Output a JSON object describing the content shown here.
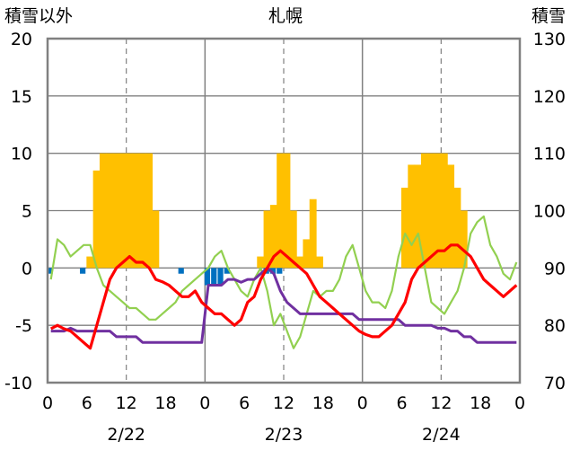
{
  "chart_data": {
    "type": "bar",
    "title": "札幌",
    "left_axis_label": "積雪以外",
    "right_axis_label": "積雪",
    "left_ylim": [
      -10,
      20
    ],
    "left_ticks": [
      "-10",
      "-5",
      "0",
      "5",
      "10",
      "15",
      "20"
    ],
    "right_ylim": [
      70,
      130
    ],
    "right_ticks": [
      "70",
      "80",
      "90",
      "100",
      "110",
      "120",
      "130"
    ],
    "x_range_hours": [
      0,
      72
    ],
    "x_tick_labels": [
      "0",
      "6",
      "12",
      "18",
      "0",
      "6",
      "12",
      "18",
      "0",
      "6",
      "12",
      "18",
      "0"
    ],
    "date_labels": [
      "2/22",
      "2/23",
      "2/24"
    ],
    "grid": true,
    "colors": {
      "snowfall": "#FFC000",
      "precip": "#0070C0",
      "temperature": "#FF0000",
      "humidity_like": "#92D050",
      "snow_depth": "#7030A0",
      "frame": "#808080"
    },
    "series": [
      {
        "kind": "bar",
        "color_key": "snowfall",
        "x": [
          6,
          7,
          8,
          9,
          10,
          11,
          12,
          13,
          14,
          15,
          16,
          32,
          33,
          34,
          35,
          36,
          37,
          38,
          39,
          40,
          41,
          54,
          55,
          56,
          57,
          58,
          59,
          60,
          61,
          62,
          63
        ],
        "values": [
          1,
          8.5,
          10,
          10,
          10,
          10,
          10,
          10,
          10,
          10,
          5,
          1,
          5,
          5.5,
          10,
          10,
          5,
          1,
          2.5,
          6,
          1,
          7,
          9,
          9,
          10,
          10,
          10,
          10,
          9,
          7,
          5
        ]
      },
      {
        "kind": "bar",
        "color_key": "precip",
        "x": [
          0,
          5,
          20,
          24,
          25,
          26,
          27,
          33,
          34,
          35
        ],
        "values": [
          -0.5,
          -0.5,
          -0.5,
          -1.5,
          -1.5,
          -1.5,
          -0.5,
          -0.5,
          -0.5,
          -0.5
        ]
      },
      {
        "kind": "line",
        "color_key": "temperature",
        "x": [
          0,
          1,
          2,
          3,
          4,
          5,
          6,
          7,
          8,
          9,
          10,
          11,
          12,
          13,
          14,
          15,
          16,
          17,
          18,
          19,
          20,
          21,
          22,
          23,
          24,
          25,
          26,
          27,
          28,
          29,
          30,
          31,
          32,
          33,
          34,
          35,
          36,
          37,
          38,
          39,
          40,
          41,
          42,
          43,
          44,
          45,
          46,
          47,
          48,
          49,
          50,
          51,
          52,
          53,
          54,
          55,
          56,
          57,
          58,
          59,
          60,
          61,
          62,
          63,
          64,
          65,
          66,
          67,
          68,
          69,
          70,
          71
        ],
        "values": [
          -5.3,
          -5,
          -5.3,
          -5.5,
          -6,
          -6.5,
          -7,
          -5,
          -3,
          -1,
          0,
          0.5,
          1,
          0.5,
          0.5,
          0,
          -1,
          -1.2,
          -1.5,
          -2,
          -2.5,
          -2.5,
          -2,
          -3,
          -3.5,
          -4,
          -4,
          -4.5,
          -5,
          -4.5,
          -3,
          -2.5,
          -1,
          0,
          1,
          1.5,
          1,
          0.5,
          0,
          -0.5,
          -1.5,
          -2.5,
          -3,
          -3.5,
          -4,
          -4.5,
          -5,
          -5.5,
          -5.8,
          -6,
          -6,
          -5.5,
          -5,
          -4,
          -3,
          -1,
          0,
          0.5,
          1,
          1.5,
          1.5,
          2,
          2,
          1.5,
          1,
          0,
          -1,
          -1.5,
          -2,
          -2.5,
          -2,
          -1.5
        ]
      },
      {
        "kind": "line",
        "color_key": "humidity_like",
        "x": [
          0,
          1,
          2,
          3,
          4,
          5,
          6,
          7,
          8,
          9,
          10,
          11,
          12,
          13,
          14,
          15,
          16,
          17,
          18,
          19,
          20,
          21,
          22,
          23,
          24,
          25,
          26,
          27,
          28,
          29,
          30,
          31,
          32,
          33,
          34,
          35,
          36,
          37,
          38,
          39,
          40,
          41,
          42,
          43,
          44,
          45,
          46,
          47,
          48,
          49,
          50,
          51,
          52,
          53,
          54,
          55,
          56,
          57,
          58,
          59,
          60,
          61,
          62,
          63,
          64,
          65,
          66,
          67,
          68,
          69,
          70,
          71
        ],
        "values": [
          -1,
          2.5,
          2,
          1,
          1.5,
          2,
          2,
          0,
          -1.5,
          -2,
          -2.5,
          -3,
          -3.5,
          -3.5,
          -4,
          -4.5,
          -4.5,
          -4,
          -3.5,
          -3,
          -2,
          -1.5,
          -1,
          -0.5,
          0,
          1,
          1.5,
          0,
          -1,
          -2,
          -2.5,
          -1,
          0,
          -2,
          -5,
          -4,
          -5.5,
          -7,
          -6,
          -4,
          -2,
          -2.5,
          -2,
          -2,
          -1,
          1,
          2,
          0,
          -2,
          -3,
          -3,
          -3.5,
          -2,
          1,
          3,
          2,
          3,
          0,
          -3,
          -3.5,
          -4,
          -3,
          -2,
          0,
          3,
          4,
          4.5,
          2,
          1,
          -0.5,
          -1,
          0.5
        ]
      },
      {
        "kind": "line",
        "color_key": "snow_depth",
        "axis": "right",
        "x": [
          0,
          2,
          3,
          4,
          5,
          6,
          7,
          8,
          9,
          10,
          11,
          12,
          13,
          14,
          15,
          16,
          17,
          18,
          19,
          20,
          21,
          22,
          23,
          24,
          25,
          26,
          27,
          28,
          29,
          30,
          31,
          32,
          33,
          34,
          35,
          36,
          37,
          38,
          39,
          40,
          41,
          42,
          43,
          44,
          45,
          46,
          47,
          48,
          49,
          50,
          51,
          52,
          53,
          54,
          55,
          56,
          57,
          58,
          59,
          60,
          61,
          62,
          63,
          64,
          65,
          66,
          67,
          68,
          69,
          70,
          71
        ],
        "values": [
          79,
          79,
          79.5,
          79,
          79,
          79,
          79,
          79,
          79,
          78,
          78,
          78,
          78,
          77,
          77,
          77,
          77,
          77,
          77,
          77,
          77,
          77,
          77,
          87,
          87,
          87,
          88,
          88,
          87.5,
          88,
          88,
          89,
          90,
          89,
          86,
          84,
          83,
          82,
          82,
          82,
          82,
          82,
          82,
          82,
          82,
          82,
          81,
          81,
          81,
          81,
          81,
          81,
          81,
          80,
          80,
          80,
          80,
          80,
          79.5,
          79.5,
          79,
          79,
          78,
          78,
          77,
          77,
          77,
          77,
          77,
          77,
          77
        ]
      }
    ]
  }
}
